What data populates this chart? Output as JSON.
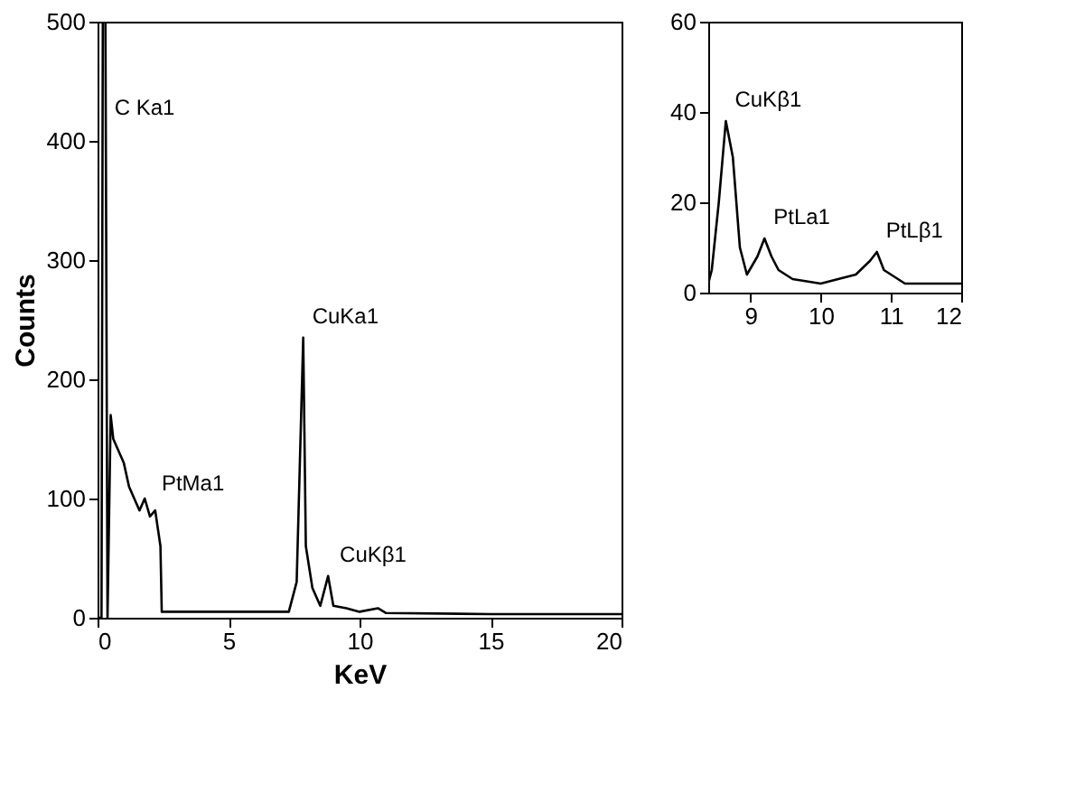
{
  "chart_data": [
    {
      "type": "line",
      "xlabel": "KeV",
      "ylabel": "Counts",
      "xlim": [
        0,
        20
      ],
      "ylim": [
        0,
        500
      ],
      "xticks": [
        0,
        5,
        10,
        15,
        20
      ],
      "yticks": [
        0,
        100,
        200,
        300,
        400,
        500
      ],
      "grid": false,
      "series": [
        {
          "color": "#000000",
          "x": [
            0,
            0.15,
            0.2,
            0.3,
            0.38,
            0.5,
            0.6,
            0.8,
            1.0,
            1.2,
            1.4,
            1.6,
            1.8,
            2.0,
            2.2,
            2.4,
            2.45,
            3,
            5,
            7.3,
            7.6,
            7.85,
            7.95,
            8.2,
            8.5,
            8.8,
            9.0,
            9.5,
            10,
            10.7,
            11,
            15,
            20
          ],
          "values": [
            0,
            0,
            500,
            500,
            0,
            170,
            150,
            140,
            130,
            110,
            100,
            90,
            100,
            85,
            90,
            60,
            5,
            5,
            5,
            5,
            30,
            235,
            60,
            25,
            10,
            35,
            10,
            8,
            5,
            8,
            4,
            3,
            3
          ]
        }
      ],
      "annotations": [
        {
          "text": "C Ka1",
          "x": 0.3,
          "y": 410
        },
        {
          "text": "PtMa1",
          "x": 2.1,
          "y": 95
        },
        {
          "text": "CuKa1",
          "x": 7.85,
          "y": 235
        },
        {
          "text": "CuKβ1",
          "x": 8.9,
          "y": 35
        }
      ]
    },
    {
      "type": "line",
      "xlim": [
        8.4,
        12
      ],
      "ylim": [
        0,
        60
      ],
      "xticks": [
        9,
        10,
        11,
        12
      ],
      "yticks": [
        0,
        20,
        40,
        60
      ],
      "grid": false,
      "series": [
        {
          "color": "#000000",
          "x": [
            8.4,
            8.45,
            8.55,
            8.65,
            8.75,
            8.85,
            8.95,
            9.1,
            9.2,
            9.3,
            9.4,
            9.6,
            10,
            10.5,
            10.7,
            10.8,
            10.9,
            11.2,
            12
          ],
          "values": [
            2,
            5,
            20,
            38,
            30,
            10,
            4,
            8,
            12,
            8,
            5,
            3,
            2,
            4,
            7,
            9,
            5,
            2,
            2
          ]
        }
      ],
      "annotations": [
        {
          "text": "CuKβ1",
          "x": 8.65,
          "y": 38
        },
        {
          "text": "PtLa1",
          "x": 9.2,
          "y": 12
        },
        {
          "text": "PtLβ1",
          "x": 10.8,
          "y": 9
        }
      ]
    }
  ]
}
